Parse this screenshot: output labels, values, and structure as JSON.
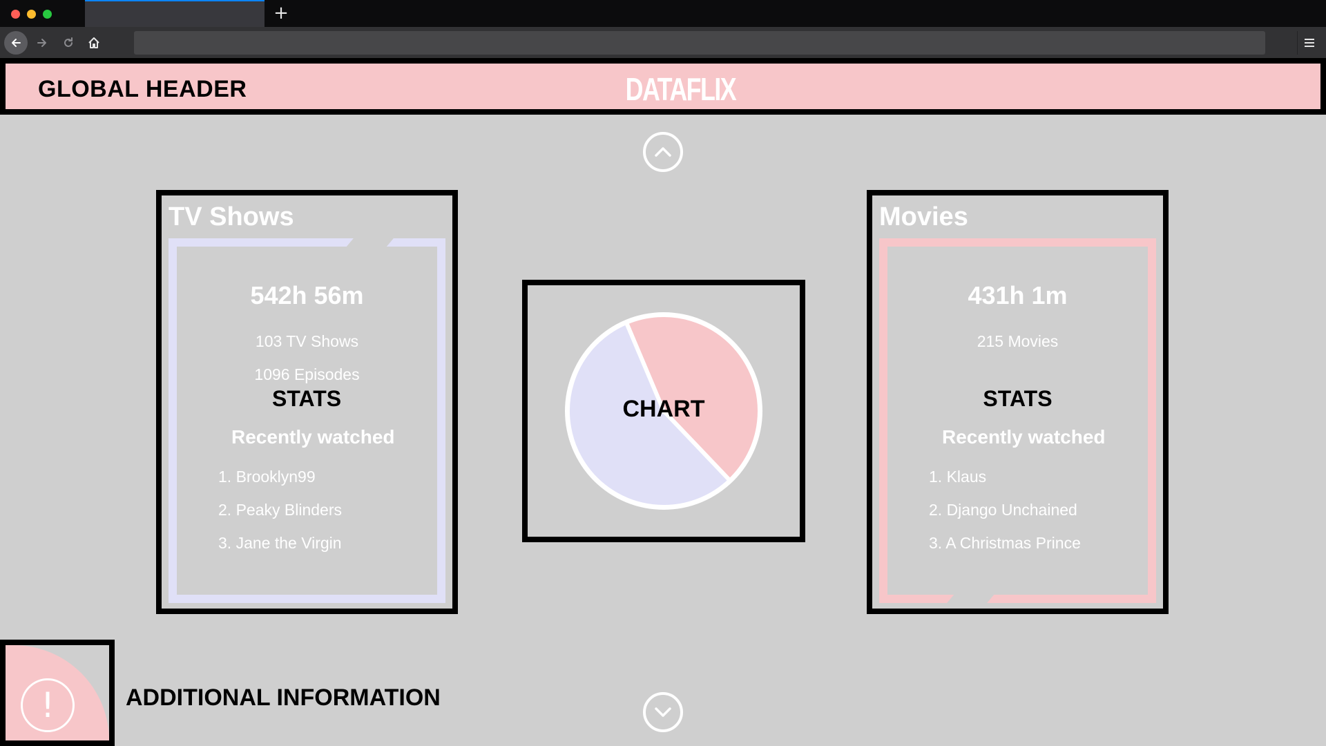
{
  "browser": {
    "new_tab_label": "+",
    "url": ""
  },
  "header": {
    "label": "GLOBAL HEADER",
    "brand": "DATAFLIX",
    "colors": {
      "background": "#f7c6c9",
      "border": "#000000"
    }
  },
  "tv": {
    "title": "TV Shows",
    "total": "542h 56m",
    "count": "103 TV Shows",
    "episodes": "1096 Episodes",
    "stats_label": "STATS",
    "recent_label": "Recently watched",
    "recent": [
      "1. Brooklyn99",
      "2. Peaky Blinders",
      "3. Jane the Virgin"
    ],
    "color": "#e0e0f7"
  },
  "movies": {
    "title": "Movies",
    "total": "431h 1m",
    "count": "215 Movies",
    "stats_label": "STATS",
    "recent_label": "Recently watched",
    "recent": [
      "1. Klaus",
      "2. Django Unchained",
      "3. A Christmas Prince"
    ],
    "color": "#f7c6c9"
  },
  "chart": {
    "label": "CHART",
    "chart_data": {
      "type": "pie",
      "categories": [
        "Movies",
        "TV Shows"
      ],
      "values": [
        431,
        543
      ],
      "colors": [
        "#f7c6c9",
        "#e0e0f7"
      ]
    }
  },
  "info": {
    "label": "ADDITIONAL INFORMATION",
    "icon": "!"
  },
  "icons": {
    "up": "chevron-up-icon",
    "down": "chevron-down-icon",
    "warning": "exclamation-icon"
  }
}
